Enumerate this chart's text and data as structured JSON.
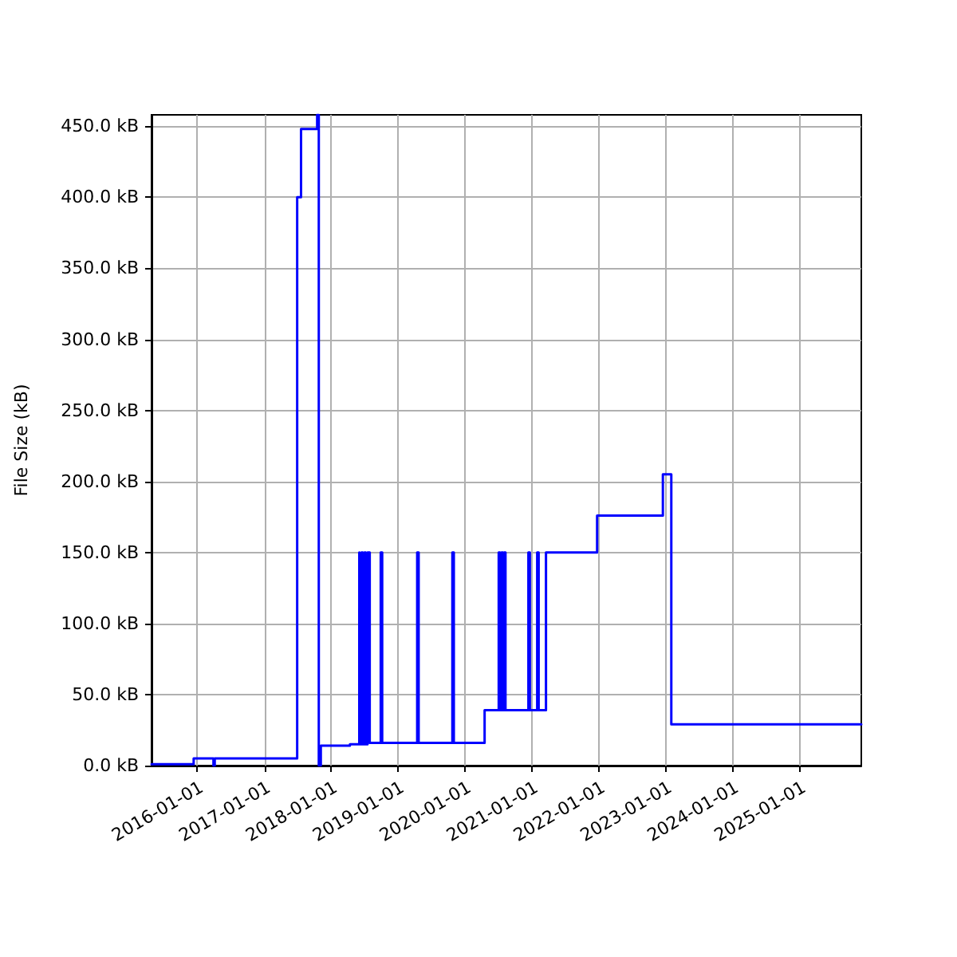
{
  "chart_data": {
    "type": "step",
    "ylabel": "File Size (kB)",
    "x": [
      "2015-04-26",
      "2015-12-12",
      "2016-03-29",
      "2016-04-05",
      "2017-06-29",
      "2017-07-20",
      "2017-10-16",
      "2017-10-25",
      "2017-11-05",
      "2018-04-13",
      "2018-06-03",
      "2018-06-08",
      "2018-06-15",
      "2018-06-22",
      "2018-07-01",
      "2018-07-08",
      "2018-07-18",
      "2018-07-30",
      "2018-09-28",
      "2018-10-06",
      "2019-04-15",
      "2019-04-23",
      "2019-10-24",
      "2019-11-01",
      "2020-04-17",
      "2020-07-03",
      "2020-07-10",
      "2020-07-18",
      "2020-07-26",
      "2020-08-02",
      "2020-08-09",
      "2020-12-12",
      "2020-12-20",
      "2021-01-29",
      "2021-02-06",
      "2021-03-18",
      "2021-12-22",
      "2022-12-16",
      "2023-01-31",
      "2025-12-03"
    ],
    "series": [
      {
        "color": "#0000ff",
        "values": [
          1,
          5,
          0,
          5,
          400,
          448,
          458,
          0,
          14,
          15,
          150,
          15,
          150,
          15,
          150,
          15,
          150,
          16,
          150,
          16,
          150,
          16,
          150,
          16,
          39,
          150,
          39,
          150,
          39,
          150,
          39,
          150,
          39,
          150,
          39,
          150,
          176,
          205,
          29,
          29
        ]
      }
    ],
    "xlim": [
      "2015-04-26",
      "2025-12-03"
    ],
    "xticks": [
      "2016-01-01",
      "2017-01-01",
      "2018-01-01",
      "2019-01-01",
      "2020-01-01",
      "2021-01-01",
      "2022-01-01",
      "2023-01-01",
      "2024-01-01",
      "2025-01-01"
    ],
    "ylim": [
      0,
      458
    ],
    "yticks": [
      {
        "value": 0,
        "label": "0.0 kB"
      },
      {
        "value": 50,
        "label": "50.0 kB"
      },
      {
        "value": 100,
        "label": "100.0 kB"
      },
      {
        "value": 150,
        "label": "150.0 kB"
      },
      {
        "value": 200,
        "label": "200.0 kB"
      },
      {
        "value": 250,
        "label": "250.0 kB"
      },
      {
        "value": 300,
        "label": "300.0 kB"
      },
      {
        "value": 350,
        "label": "350.0 kB"
      },
      {
        "value": 400,
        "label": "400.0 kB"
      },
      {
        "value": 450,
        "label": "450.0 kB"
      }
    ],
    "grid": true,
    "line_style": "solid",
    "marker": "none"
  }
}
